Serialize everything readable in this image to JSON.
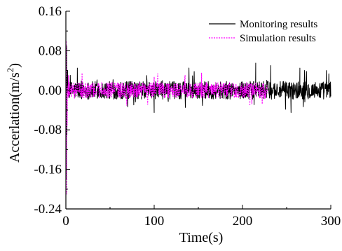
{
  "chart_data": {
    "type": "line",
    "title": "",
    "xlabel": "Time(s)",
    "ylabel_main": "Accerlation(m/s",
    "ylabel_sup": "2",
    "ylabel_close": ")",
    "xlim": [
      0,
      300
    ],
    "ylim": [
      -0.24,
      0.16
    ],
    "x_ticks": [
      0,
      100,
      200,
      300
    ],
    "x_tick_labels": [
      "0",
      "100",
      "200",
      "300"
    ],
    "y_ticks": [
      0.16,
      0.08,
      0.0,
      -0.08,
      -0.16,
      -0.24
    ],
    "y_tick_labels": [
      "0.16",
      "0.08",
      "0.00",
      "-0.08",
      "-0.16",
      "-0.24"
    ],
    "grid": false,
    "legend_position": "top-right",
    "series": [
      {
        "name": "Monitoring results",
        "color": "#000000",
        "style": "solid",
        "x_range": [
          0,
          300
        ],
        "typical_amplitude": 0.018,
        "noise_band": [
          -0.04,
          0.05
        ],
        "peaks": [
          {
            "x": 0.5,
            "y": -0.18
          },
          {
            "x": 0.8,
            "y": 0.09
          },
          {
            "x": 1.2,
            "y": -0.09
          },
          {
            "x": 2,
            "y": 0.04
          },
          {
            "x": 13,
            "y": 0.045
          },
          {
            "x": 100,
            "y": -0.045
          },
          {
            "x": 215,
            "y": 0.055
          },
          {
            "x": 232,
            "y": 0.05
          },
          {
            "x": 255,
            "y": -0.045
          },
          {
            "x": 265,
            "y": 0.045
          },
          {
            "x": 295,
            "y": 0.04
          }
        ]
      },
      {
        "name": "Simulation results",
        "color": "#ff00ff",
        "style": "dashed",
        "x_range": [
          0,
          228
        ],
        "typical_amplitude": 0.016,
        "noise_band": [
          -0.035,
          0.04
        ],
        "peaks": [
          {
            "x": 0.4,
            "y": 0.1
          },
          {
            "x": 0.9,
            "y": -0.21
          },
          {
            "x": 1.5,
            "y": -0.07
          },
          {
            "x": 3,
            "y": 0.03
          },
          {
            "x": 135,
            "y": 0.03
          }
        ]
      }
    ]
  }
}
